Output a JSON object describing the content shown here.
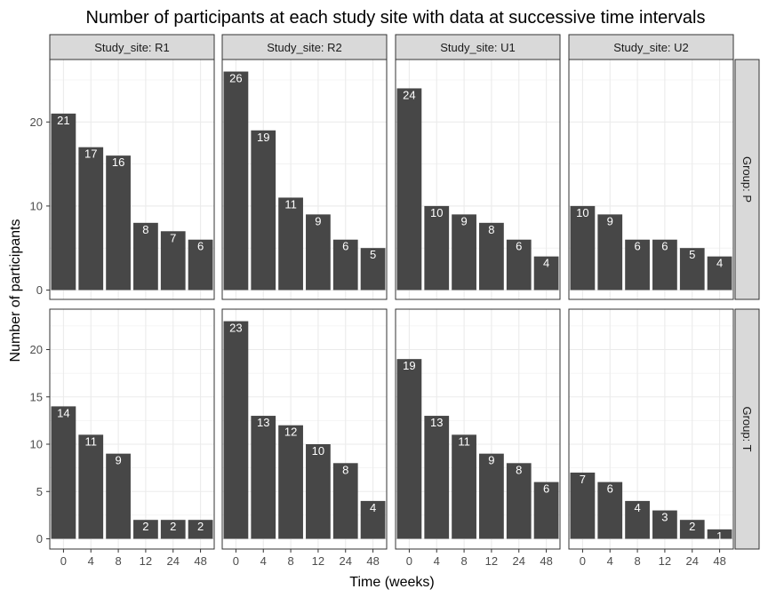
{
  "chart_data": {
    "type": "bar",
    "title": "Number of participants at each study site with data at successive time intervals",
    "xlabel": "Time (weeks)",
    "ylabel": "Number of participants",
    "categories": [
      "0",
      "4",
      "8",
      "12",
      "24",
      "48"
    ],
    "bar_color": "#474747",
    "strip_fill": "#d9d9d9",
    "grid": true,
    "columns": [
      "Study_site: R1",
      "Study_site: R2",
      "Study_site: U1",
      "Study_site: U2"
    ],
    "rows": [
      {
        "label": "Group: P",
        "ylim": [
          0,
          26.5
        ],
        "yticks": [
          0,
          10,
          20
        ],
        "panels": [
          {
            "site": "R1",
            "values": [
              21,
              17,
              16,
              8,
              7,
              6
            ]
          },
          {
            "site": "R2",
            "values": [
              26,
              19,
              11,
              9,
              6,
              5
            ]
          },
          {
            "site": "U1",
            "values": [
              24,
              10,
              9,
              8,
              6,
              4
            ]
          },
          {
            "site": "U2",
            "values": [
              10,
              9,
              6,
              6,
              5,
              4
            ]
          }
        ]
      },
      {
        "label": "Group: T",
        "ylim": [
          0,
          23.5
        ],
        "yticks": [
          0,
          5,
          10,
          15,
          20
        ],
        "panels": [
          {
            "site": "R1",
            "values": [
              14,
              11,
              9,
              2,
              2,
              2
            ]
          },
          {
            "site": "R2",
            "values": [
              23,
              13,
              12,
              10,
              8,
              4
            ]
          },
          {
            "site": "U1",
            "values": [
              19,
              13,
              11,
              9,
              8,
              6
            ]
          },
          {
            "site": "U2",
            "values": [
              7,
              6,
              4,
              3,
              2,
              1
            ]
          }
        ]
      }
    ]
  }
}
